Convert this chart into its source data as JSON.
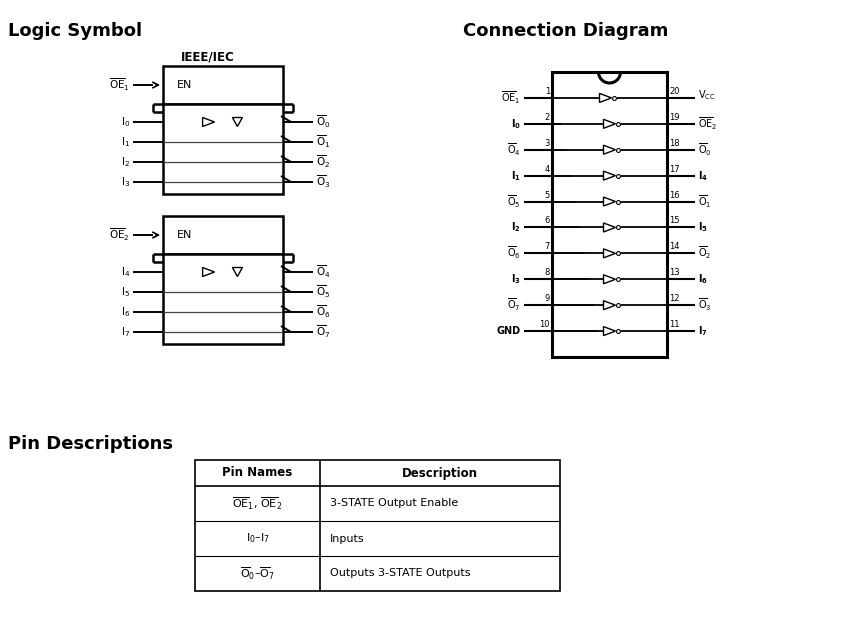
{
  "title_logic": "Logic Symbol",
  "title_conn": "Connection Diagram",
  "title_pin": "Pin Descriptions",
  "ieee_label": "IEEE/IEC",
  "bg_color": "#ffffff",
  "left_pins_conn": [
    "OE1",
    "I0",
    "O4",
    "I1",
    "O5",
    "I2",
    "O6",
    "I3",
    "O7",
    "GND"
  ],
  "left_pins_num": [
    "1",
    "2",
    "3",
    "4",
    "5",
    "6",
    "7",
    "8",
    "9",
    "10"
  ],
  "left_overline": [
    true,
    false,
    true,
    false,
    true,
    false,
    true,
    false,
    true,
    false
  ],
  "left_bold": [
    true,
    true,
    false,
    true,
    false,
    true,
    false,
    true,
    false,
    false
  ],
  "right_pins_conn": [
    "VCC",
    "OE2",
    "O0",
    "I4",
    "O1",
    "I5",
    "O2",
    "I6",
    "O3",
    "I7"
  ],
  "right_pins_num": [
    "20",
    "19",
    "18",
    "17",
    "16",
    "15",
    "14",
    "13",
    "12",
    "11"
  ],
  "right_overline": [
    false,
    true,
    true,
    false,
    true,
    false,
    true,
    false,
    true,
    false
  ],
  "right_bold": [
    false,
    true,
    false,
    true,
    false,
    true,
    false,
    true,
    false,
    true
  ]
}
